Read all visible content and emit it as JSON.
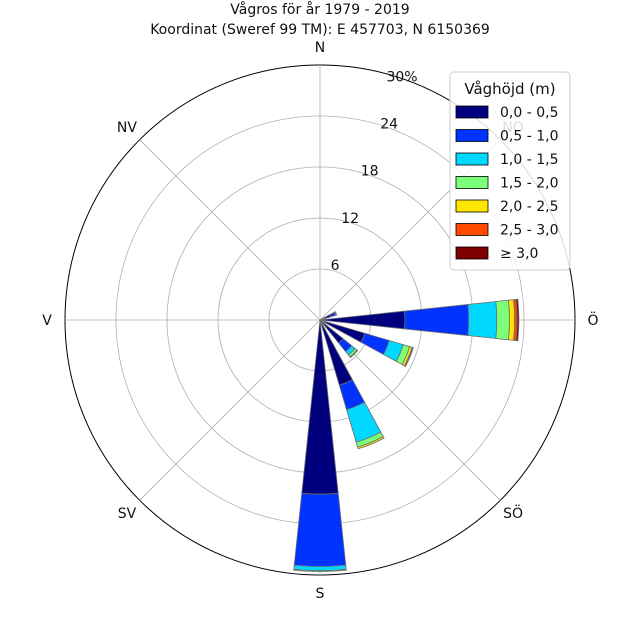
{
  "chart_data": {
    "type": "bar",
    "subtype": "wind-rose",
    "title": "Vågros för år 1979 - 2019",
    "subtitle": "Koordinat (Sweref 99 TM): E 457703, N 6150369",
    "direction_labels": {
      "N": "N",
      "NO": "NO",
      "O": "Ö",
      "SO": "SÖ",
      "S": "S",
      "SV": "SV",
      "V": "V",
      "NV": "NV"
    },
    "radial_ticks": [
      6,
      12,
      18,
      24
    ],
    "radial_max_label": "30%",
    "rlim": [
      0,
      30
    ],
    "grid": true,
    "legend_position": "top-right",
    "legend_title": "Våghöjd (m)",
    "categories": [
      "0,0 - 0,5",
      "0,5 - 1,0",
      "1,0 - 1,5",
      "1,5 - 2,0",
      "2,0 - 2,5",
      "2,5 - 3,0",
      "≥ 3,0"
    ],
    "colors": [
      "#00007f",
      "#0033ff",
      "#00d8ff",
      "#7cff79",
      "#ffe600",
      "#ff4a00",
      "#7f0000"
    ],
    "bins": [
      {
        "direction_deg": 67.5,
        "values": [
          1.3,
          0.6,
          0.1,
          0.05,
          0,
          0,
          0
        ]
      },
      {
        "direction_deg": 90,
        "values": [
          10.0,
          7.5,
          3.3,
          1.5,
          0.6,
          0.3,
          0.2
        ]
      },
      {
        "direction_deg": 112.5,
        "values": [
          5.5,
          3.0,
          1.7,
          0.8,
          0.3,
          0.1,
          0.05
        ]
      },
      {
        "direction_deg": 135,
        "values": [
          3.5,
          1.3,
          0.5,
          0.3,
          0.1,
          0,
          0
        ]
      },
      {
        "direction_deg": 157.5,
        "values": [
          8.0,
          3.0,
          4.0,
          0.6,
          0.2,
          0,
          0
        ]
      },
      {
        "direction_deg": 180,
        "values": [
          20.5,
          8.5,
          0.5,
          0.1,
          0,
          0,
          0
        ]
      }
    ]
  }
}
